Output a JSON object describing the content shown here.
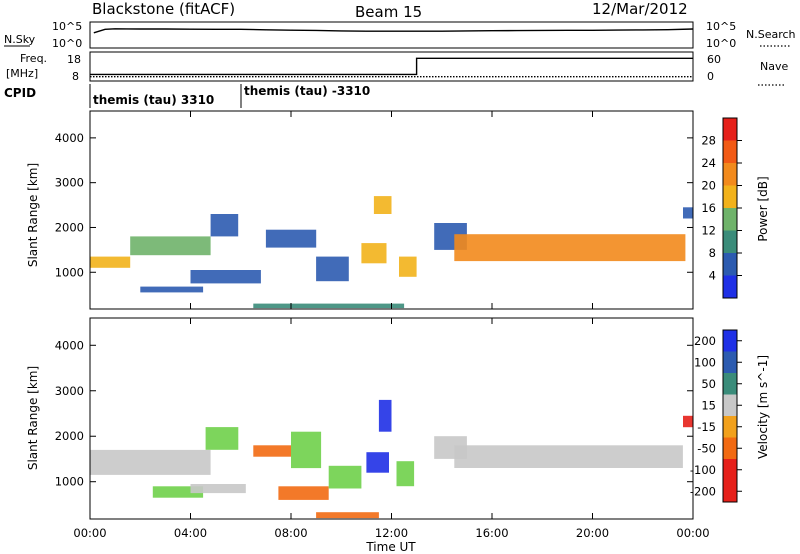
{
  "header": {
    "title": "Blackstone (fitACF)",
    "beam": "Beam 15",
    "date": "12/Mar/2012"
  },
  "top_panels": {
    "nsky_label": "N.Sky",
    "nsearch_label": "N.Search",
    "log_top": "10^5",
    "log_bottom": "10^0",
    "freq_label": "Freq.",
    "freq_unit": "[MHz]",
    "freq_ticks": [
      "18",
      "8"
    ],
    "nave_label": "Nave",
    "nave_ticks": [
      "60",
      "0"
    ],
    "cpid_label": "CPID",
    "cpid_segments": [
      {
        "label": "themis (tau) 3310",
        "start_hour": 0,
        "end_hour": 6.0
      },
      {
        "label": "themis (tau) -3310",
        "start_hour": 6.0,
        "end_hour": 24.0
      }
    ]
  },
  "colors": {
    "power_scale": [
      "#1f30e6",
      "#2c5bb0",
      "#3a8c7a",
      "#6fb36a",
      "#f2b21b",
      "#f28a1c",
      "#f25a15",
      "#e6201a"
    ],
    "velocity_scale": [
      "#1f30e6",
      "#2c5bb0",
      "#3a8c7a",
      "#6fd04a",
      "#c8c8c8",
      "#f2a11c",
      "#f26a12",
      "#e6201a"
    ]
  },
  "chart_data": [
    {
      "type": "line",
      "title": "N.Sky / N.Search",
      "x_unit": "hours UT",
      "xlim": [
        0,
        24
      ],
      "y_scale": "log",
      "ylim": [
        1,
        100000
      ],
      "series": [
        {
          "name": "N.Sky",
          "x": [
            0.15,
            0.6,
            1,
            2,
            3,
            4,
            5,
            6,
            7,
            8,
            9,
            10,
            11,
            12,
            13,
            14,
            15,
            16,
            17,
            18,
            19,
            20,
            21,
            22,
            23,
            24
          ],
          "y": [
            2000,
            15000,
            20000,
            18000,
            18000,
            16000,
            15000,
            15000,
            11000,
            9000,
            8000,
            6000,
            5000,
            5000,
            5000,
            5000,
            6000,
            6500,
            7000,
            8000,
            8500,
            8500,
            9500,
            10500,
            12000,
            18000
          ]
        }
      ]
    },
    {
      "type": "line",
      "title": "Freq. / Nave",
      "x_unit": "hours UT",
      "xlim": [
        0,
        24
      ],
      "y_left_label": "Freq. [MHz]",
      "y_left_lim": [
        8,
        18
      ],
      "y_right_label": "Nave",
      "y_right_lim": [
        0,
        60
      ],
      "series": [
        {
          "name": "Freq.",
          "x": [
            0,
            13,
            13,
            24
          ],
          "y": [
            10,
            10,
            17,
            17
          ]
        },
        {
          "name": "Nave",
          "x": [
            0,
            24
          ],
          "y": [
            6,
            6
          ]
        }
      ]
    },
    {
      "type": "heatmap",
      "title": "Power",
      "xlabel": "",
      "ylabel": "Slant Range [km]",
      "colorbar_label": "Power [dB]",
      "colorbar_ticks": [
        28,
        24,
        20,
        16,
        12,
        8,
        4
      ],
      "xlim": [
        0,
        24
      ],
      "ylim": [
        180,
        4600
      ],
      "yticks": [
        1000,
        2000,
        3000,
        4000
      ],
      "bands": [
        {
          "x_start": 0.0,
          "x_end": 1.6,
          "y_low": 1100,
          "y_high": 1350,
          "value": 20
        },
        {
          "x_start": 1.6,
          "x_end": 4.8,
          "y_low": 1380,
          "y_high": 1800,
          "value": 16
        },
        {
          "x_start": 4.8,
          "x_end": 5.9,
          "y_low": 1800,
          "y_high": 2300,
          "value": 9
        },
        {
          "x_start": 2.0,
          "x_end": 4.5,
          "y_low": 550,
          "y_high": 680,
          "value": 7
        },
        {
          "x_start": 4.0,
          "x_end": 6.8,
          "y_low": 750,
          "y_high": 1050,
          "value": 8
        },
        {
          "x_start": 7.0,
          "x_end": 9.0,
          "y_low": 1550,
          "y_high": 1950,
          "value": 8
        },
        {
          "x_start": 9.0,
          "x_end": 10.3,
          "y_low": 800,
          "y_high": 1350,
          "value": 8
        },
        {
          "x_start": 6.5,
          "x_end": 12.5,
          "y_low": 200,
          "y_high": 300,
          "value": 13
        },
        {
          "x_start": 10.8,
          "x_end": 11.8,
          "y_low": 1200,
          "y_high": 1650,
          "value": 19
        },
        {
          "x_start": 11.3,
          "x_end": 12.0,
          "y_low": 2300,
          "y_high": 2700,
          "value": 20
        },
        {
          "x_start": 12.3,
          "x_end": 13.0,
          "y_low": 900,
          "y_high": 1350,
          "value": 20
        },
        {
          "x_start": 13.7,
          "x_end": 15.0,
          "y_low": 1500,
          "y_high": 2100,
          "value": 9
        },
        {
          "x_start": 14.5,
          "x_end": 23.7,
          "y_low": 1250,
          "y_high": 1850,
          "value": 24
        },
        {
          "x_start": 23.6,
          "x_end": 24.0,
          "y_low": 2200,
          "y_high": 2450,
          "value": 8
        }
      ]
    },
    {
      "type": "heatmap",
      "title": "Velocity",
      "xlabel": "Time UT",
      "ylabel": "Slant Range [km]",
      "colorbar_label": "Velocity [m s^-1]",
      "colorbar_ticks": [
        200,
        100,
        50,
        15,
        -15,
        -50,
        -100,
        -200
      ],
      "xlim": [
        0,
        24
      ],
      "ylim": [
        180,
        4600
      ],
      "yticks": [
        1000,
        2000,
        3000,
        4000
      ],
      "xticks": [
        "00:00",
        "04:00",
        "08:00",
        "12:00",
        "16:00",
        "20:00",
        "00:00"
      ],
      "bands": [
        {
          "x_start": 0.0,
          "x_end": 4.8,
          "y_low": 1150,
          "y_high": 1700,
          "value": 0
        },
        {
          "x_start": 4.6,
          "x_end": 5.9,
          "y_low": 1700,
          "y_high": 2200,
          "value": 20
        },
        {
          "x_start": 2.5,
          "x_end": 4.5,
          "y_low": 650,
          "y_high": 900,
          "value": 20
        },
        {
          "x_start": 4.0,
          "x_end": 6.2,
          "y_low": 750,
          "y_high": 950,
          "value": 0
        },
        {
          "x_start": 6.5,
          "x_end": 8.0,
          "y_low": 1550,
          "y_high": 1800,
          "value": -60
        },
        {
          "x_start": 8.0,
          "x_end": 9.2,
          "y_low": 1300,
          "y_high": 2100,
          "value": 20
        },
        {
          "x_start": 7.5,
          "x_end": 9.5,
          "y_low": 600,
          "y_high": 900,
          "value": -60
        },
        {
          "x_start": 9.5,
          "x_end": 10.8,
          "y_low": 850,
          "y_high": 1350,
          "value": 20
        },
        {
          "x_start": 9.0,
          "x_end": 11.5,
          "y_low": 200,
          "y_high": 330,
          "value": -60
        },
        {
          "x_start": 11.0,
          "x_end": 11.9,
          "y_low": 1200,
          "y_high": 1650,
          "value": 200
        },
        {
          "x_start": 11.5,
          "x_end": 12.0,
          "y_low": 2100,
          "y_high": 2800,
          "value": 200
        },
        {
          "x_start": 12.2,
          "x_end": 12.9,
          "y_low": 900,
          "y_high": 1450,
          "value": 20
        },
        {
          "x_start": 13.7,
          "x_end": 15.0,
          "y_low": 1500,
          "y_high": 2000,
          "value": 0
        },
        {
          "x_start": 14.5,
          "x_end": 23.6,
          "y_low": 1300,
          "y_high": 1800,
          "value": 0
        },
        {
          "x_start": 23.6,
          "x_end": 24.0,
          "y_low": 2200,
          "y_high": 2450,
          "value": -200
        }
      ]
    }
  ]
}
